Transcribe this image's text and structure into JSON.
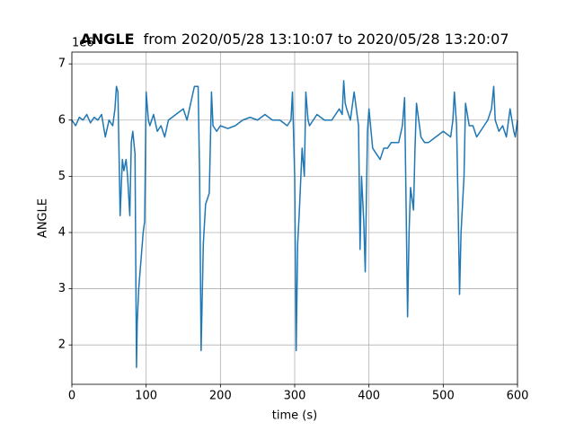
{
  "chart_data": {
    "type": "line",
    "title_parts": [
      "ANGLE",
      "from 2020/05/28 13:10:07 to 2020/05/28 13:20:07"
    ],
    "offset_text": "1e6",
    "x_label": "time (s)",
    "y_label": "ANGLE",
    "xlim": [
      0,
      600
    ],
    "ylim": [
      1.3,
      7.21
    ],
    "xticks": [
      0,
      100,
      200,
      300,
      400,
      500,
      600
    ],
    "yticks": [
      2,
      3,
      4,
      5,
      6,
      7
    ],
    "grid": true,
    "series": [
      {
        "name": "ANGLE",
        "color": "#1f77b4",
        "x": [
          0,
          5,
          10,
          15,
          20,
          25,
          30,
          35,
          40,
          45,
          50,
          55,
          58,
          60,
          62,
          65,
          68,
          70,
          73,
          75,
          78,
          80,
          82,
          85,
          87,
          88,
          90,
          93,
          96,
          98,
          100,
          103,
          105,
          110,
          115,
          120,
          125,
          130,
          140,
          150,
          155,
          160,
          165,
          170,
          172,
          174,
          177,
          180,
          185,
          188,
          190,
          195,
          200,
          210,
          220,
          230,
          240,
          250,
          260,
          270,
          280,
          290,
          295,
          297,
          300,
          302,
          304,
          306,
          310,
          313,
          315,
          318,
          320,
          330,
          340,
          350,
          360,
          364,
          366,
          368,
          370,
          375,
          380,
          384,
          386,
          388,
          390,
          393,
          395,
          398,
          400,
          405,
          410,
          415,
          420,
          425,
          430,
          440,
          445,
          448,
          450,
          452,
          454,
          456,
          460,
          462,
          464,
          468,
          470,
          475,
          480,
          490,
          500,
          510,
          513,
          515,
          518,
          520,
          522,
          524,
          526,
          528,
          530,
          535,
          540,
          545,
          550,
          555,
          560,
          565,
          568,
          570,
          575,
          580,
          585,
          590,
          595,
          597,
          600
        ],
        "values": [
          6.0,
          5.9,
          6.05,
          6.0,
          6.1,
          5.95,
          6.05,
          6.0,
          6.1,
          5.7,
          6.0,
          5.9,
          6.2,
          6.6,
          6.5,
          4.3,
          5.3,
          5.1,
          5.3,
          5.0,
          4.3,
          5.6,
          5.8,
          5.4,
          1.6,
          2.4,
          3.0,
          3.5,
          4.0,
          4.2,
          6.5,
          6.0,
          5.9,
          6.1,
          5.8,
          5.9,
          5.7,
          6.0,
          6.1,
          6.2,
          6.0,
          6.3,
          6.6,
          6.6,
          5.0,
          1.9,
          3.8,
          4.5,
          4.7,
          6.5,
          5.9,
          5.8,
          5.9,
          5.85,
          5.9,
          6.0,
          6.05,
          6.0,
          6.1,
          6.0,
          6.0,
          5.9,
          6.0,
          6.5,
          5.0,
          1.9,
          3.8,
          4.3,
          5.5,
          5.0,
          6.5,
          6.0,
          5.9,
          6.1,
          6.0,
          6.0,
          6.2,
          6.1,
          6.7,
          6.3,
          6.2,
          6.0,
          6.5,
          6.1,
          5.9,
          3.7,
          5.0,
          4.2,
          3.3,
          5.8,
          6.2,
          5.5,
          5.4,
          5.3,
          5.5,
          5.5,
          5.6,
          5.6,
          5.9,
          6.4,
          4.5,
          2.5,
          4.0,
          4.8,
          4.4,
          5.5,
          6.3,
          5.9,
          5.7,
          5.6,
          5.6,
          5.7,
          5.8,
          5.7,
          6.0,
          6.5,
          5.9,
          4.5,
          2.9,
          4.0,
          4.5,
          5.0,
          6.3,
          5.9,
          5.9,
          5.7,
          5.8,
          5.9,
          6.0,
          6.2,
          6.6,
          6.0,
          5.8,
          5.9,
          5.7,
          6.2,
          5.8,
          5.7,
          6.0
        ]
      }
    ]
  }
}
